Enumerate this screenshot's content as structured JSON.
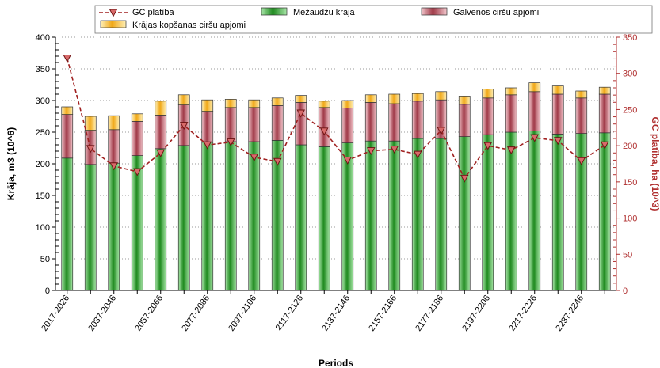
{
  "chart_data": {
    "type": "bar",
    "stacked": true,
    "categories": [
      "2017-2026",
      "2027-2036",
      "2037-2046",
      "2047-2056",
      "2057-2066",
      "2067-2076",
      "2077-2086",
      "2087-2096",
      "2097-2106",
      "2107-2116",
      "2117-2126",
      "2127-2136",
      "2137-2146",
      "2147-2156",
      "2157-2166",
      "2167-2176",
      "2177-2186",
      "2187-2196",
      "2197-2206",
      "2207-2216",
      "2217-2226",
      "2227-2236",
      "2237-2246",
      "2247-2256"
    ],
    "x_tick_labels": [
      "2017-2026",
      "2037-2046",
      "2057-2066",
      "2077-2086",
      "2097-2106",
      "2117-2126",
      "2137-2146",
      "2157-2166",
      "2177-2186",
      "2197-2206",
      "2217-2226",
      "2237-2246"
    ],
    "series": [
      {
        "name": "Mežaudžu kraja",
        "type": "bar",
        "axis": "left",
        "color": "#2e9a2e",
        "values": [
          209,
          199,
          201,
          213,
          224,
          229,
          234,
          235,
          235,
          237,
          230,
          227,
          233,
          236,
          236,
          240,
          240,
          243,
          246,
          250,
          252,
          247,
          248,
          249
        ]
      },
      {
        "name": "Galvenos ciršu apjomi",
        "type": "bar",
        "axis": "left",
        "color": "#b84a55",
        "values": [
          69,
          54,
          53,
          54,
          53,
          64,
          49,
          54,
          54,
          55,
          67,
          62,
          55,
          61,
          59,
          59,
          61,
          51,
          58,
          59,
          62,
          63,
          56,
          61
        ]
      },
      {
        "name": "Krājas kopšanas ciršu apjomi",
        "type": "bar",
        "axis": "left",
        "color": "#f5b830",
        "values": [
          12,
          22,
          22,
          12,
          22,
          16,
          18,
          13,
          12,
          12,
          11,
          10,
          12,
          12,
          15,
          12,
          13,
          13,
          14,
          11,
          14,
          13,
          11,
          11
        ]
      },
      {
        "name": "GC platība",
        "type": "line",
        "axis": "right",
        "color": "#a02020",
        "values": [
          321,
          196,
          172,
          164,
          190,
          228,
          201,
          205,
          184,
          178,
          245,
          220,
          180,
          193,
          195,
          188,
          221,
          155,
          200,
          194,
          211,
          207,
          179,
          201
        ]
      }
    ],
    "legend_order": [
      "GC platība",
      "Mežaudžu kraja",
      "Galvenos ciršu apjomi",
      "Krājas kopšanas ciršu apjomi"
    ],
    "xlabel": "Periods",
    "ylabel": "Krāja, m3 (10^6)",
    "y2label": "GC platība, ha (10^3)",
    "ylim": [
      0,
      400
    ],
    "y2lim": [
      0,
      350
    ],
    "yticks": [
      0,
      50,
      100,
      150,
      200,
      250,
      300,
      350,
      400
    ],
    "y2ticks": [
      0,
      50,
      100,
      150,
      200,
      250,
      300,
      350
    ],
    "grid": "horizontal-dotted",
    "legend_position": "top"
  }
}
